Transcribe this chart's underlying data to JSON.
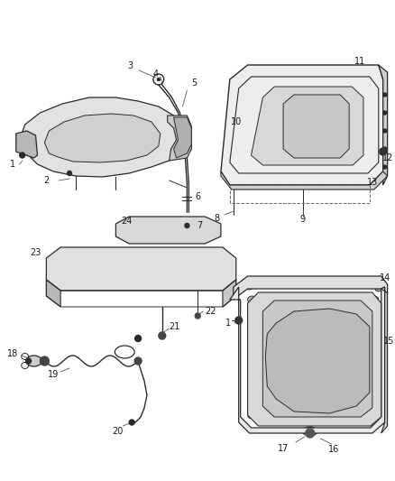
{
  "bg_color": "#ffffff",
  "fig_width": 4.38,
  "fig_height": 5.33,
  "dpi": 100,
  "line_color": "#2a2a2a",
  "label_fontsize": 7.0,
  "label_color": "#1a1a1a",
  "part_gray": "#c8c8c8",
  "part_light": "#e8e8e8",
  "part_dark": "#888888",
  "part_mid": "#b0b0b0"
}
